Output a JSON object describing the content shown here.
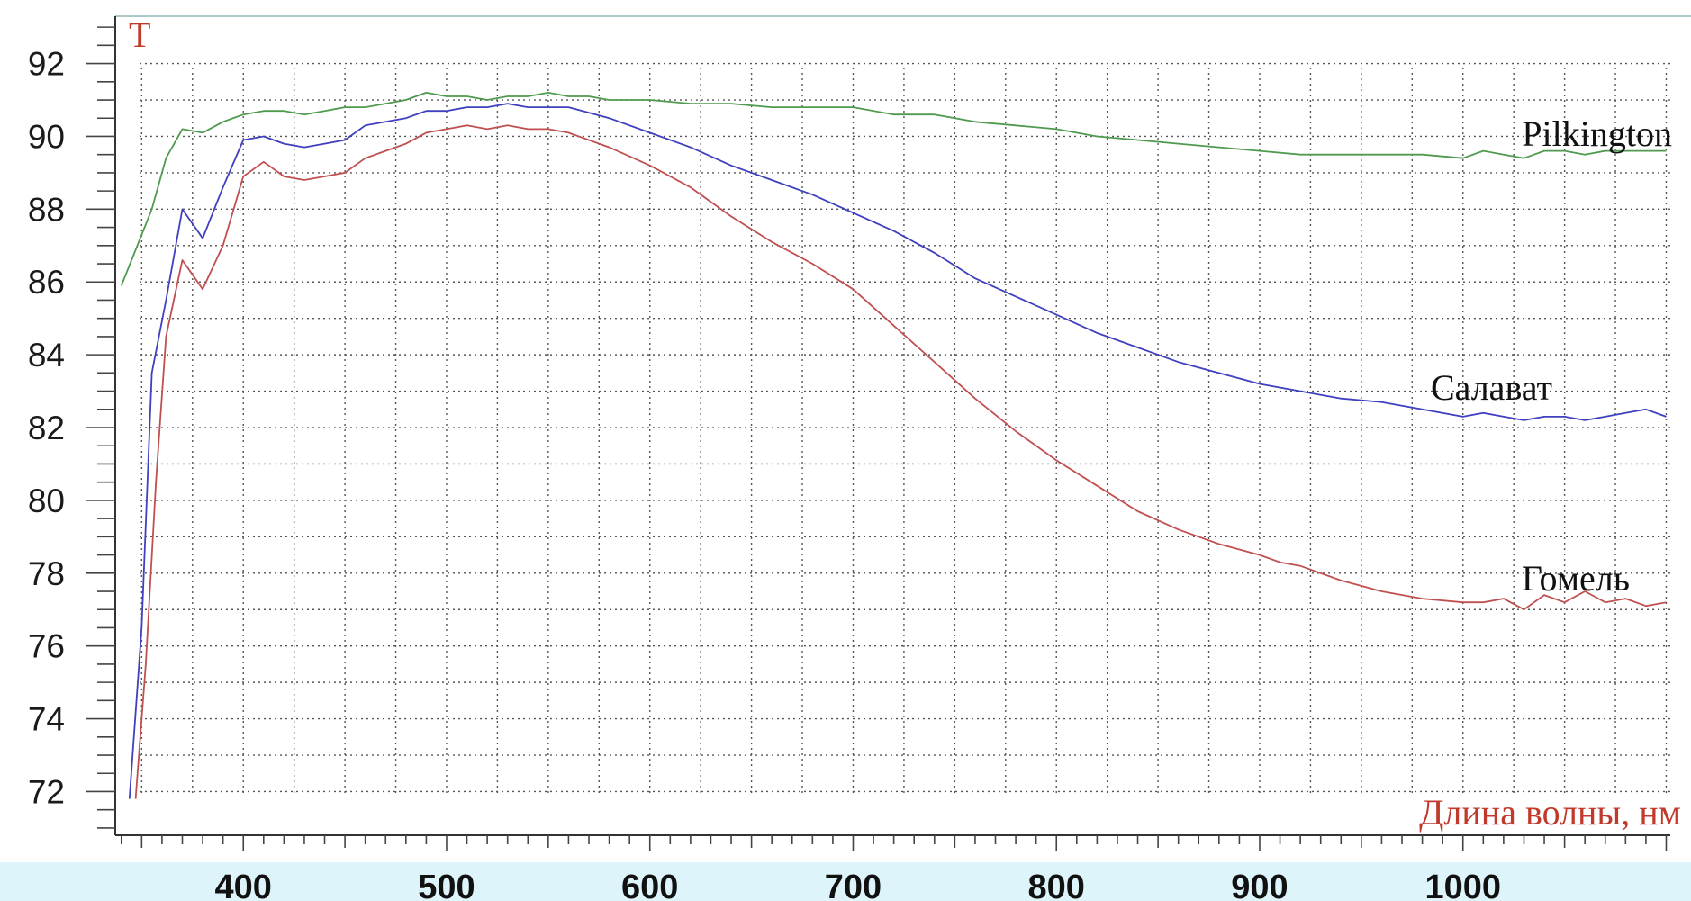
{
  "chart_data": {
    "type": "line",
    "ylabel": "T",
    "xlabel": "Длина волны, нм",
    "xlim": [
      337,
      1102
    ],
    "ylim": [
      70.8,
      93.3
    ],
    "x_ticks": [
      400,
      500,
      600,
      700,
      800,
      900,
      1000
    ],
    "y_ticks": [
      72,
      74,
      76,
      78,
      80,
      82,
      84,
      86,
      88,
      90,
      92
    ],
    "grid": true,
    "legend": "inline labels at right end of each line",
    "series": [
      {
        "name": "Pilkington",
        "color": "#4f9a4f",
        "x": [
          340,
          355,
          362,
          370,
          380,
          390,
          400,
          410,
          420,
          430,
          440,
          450,
          460,
          470,
          480,
          490,
          500,
          510,
          520,
          530,
          540,
          550,
          560,
          570,
          580,
          590,
          600,
          620,
          640,
          660,
          680,
          700,
          720,
          740,
          760,
          780,
          800,
          820,
          840,
          860,
          880,
          900,
          920,
          940,
          960,
          980,
          1000,
          1010,
          1020,
          1030,
          1040,
          1050,
          1060,
          1070,
          1080,
          1090,
          1100
        ],
        "y": [
          85.9,
          88.0,
          89.4,
          90.2,
          90.1,
          90.4,
          90.6,
          90.7,
          90.7,
          90.6,
          90.7,
          90.8,
          90.8,
          90.9,
          91.0,
          91.2,
          91.1,
          91.1,
          91.0,
          91.1,
          91.1,
          91.2,
          91.1,
          91.1,
          91.0,
          91.0,
          91.0,
          90.9,
          90.9,
          90.8,
          90.8,
          90.8,
          90.6,
          90.6,
          90.4,
          90.3,
          90.2,
          90.0,
          89.9,
          89.8,
          89.7,
          89.6,
          89.5,
          89.5,
          89.5,
          89.5,
          89.4,
          89.6,
          89.5,
          89.4,
          89.6,
          89.6,
          89.5,
          89.6,
          89.6,
          89.6,
          89.6
        ]
      },
      {
        "name": "Салават",
        "color": "#3f3fbf",
        "x": [
          344,
          350,
          355,
          362,
          370,
          380,
          390,
          400,
          410,
          420,
          430,
          440,
          450,
          460,
          470,
          480,
          490,
          500,
          510,
          520,
          530,
          540,
          550,
          560,
          580,
          600,
          620,
          640,
          660,
          680,
          700,
          720,
          740,
          760,
          780,
          800,
          820,
          840,
          860,
          880,
          900,
          920,
          940,
          960,
          980,
          1000,
          1010,
          1020,
          1030,
          1040,
          1050,
          1060,
          1070,
          1080,
          1090,
          1100
        ],
        "y": [
          71.8,
          76.5,
          83.5,
          85.5,
          88.0,
          87.2,
          88.6,
          89.9,
          90.0,
          89.8,
          89.7,
          89.8,
          89.9,
          90.3,
          90.4,
          90.5,
          90.7,
          90.7,
          90.8,
          90.8,
          90.9,
          90.8,
          90.8,
          90.8,
          90.5,
          90.1,
          89.7,
          89.2,
          88.8,
          88.4,
          87.9,
          87.4,
          86.8,
          86.1,
          85.6,
          85.1,
          84.6,
          84.2,
          83.8,
          83.5,
          83.2,
          83.0,
          82.8,
          82.7,
          82.5,
          82.3,
          82.4,
          82.3,
          82.2,
          82.3,
          82.3,
          82.2,
          82.3,
          82.4,
          82.5,
          82.3
        ]
      },
      {
        "name": "Гомель",
        "color": "#c05050",
        "x": [
          347,
          352,
          357,
          362,
          370,
          380,
          390,
          400,
          410,
          420,
          430,
          440,
          450,
          460,
          470,
          480,
          490,
          500,
          510,
          520,
          530,
          540,
          550,
          560,
          580,
          600,
          620,
          640,
          660,
          680,
          700,
          720,
          740,
          760,
          780,
          800,
          820,
          840,
          860,
          880,
          900,
          910,
          920,
          940,
          960,
          980,
          1000,
          1010,
          1020,
          1030,
          1040,
          1050,
          1060,
          1070,
          1080,
          1090,
          1100
        ],
        "y": [
          71.8,
          75.5,
          80.5,
          84.5,
          86.6,
          85.8,
          87.0,
          88.9,
          89.3,
          88.9,
          88.8,
          88.9,
          89.0,
          89.4,
          89.6,
          89.8,
          90.1,
          90.2,
          90.3,
          90.2,
          90.3,
          90.2,
          90.2,
          90.1,
          89.7,
          89.2,
          88.6,
          87.8,
          87.1,
          86.5,
          85.8,
          84.8,
          83.8,
          82.8,
          81.9,
          81.1,
          80.4,
          79.7,
          79.2,
          78.8,
          78.5,
          78.3,
          78.2,
          77.8,
          77.5,
          77.3,
          77.2,
          77.2,
          77.3,
          77.0,
          77.4,
          77.2,
          77.5,
          77.2,
          77.3,
          77.1,
          77.2
        ]
      }
    ]
  }
}
